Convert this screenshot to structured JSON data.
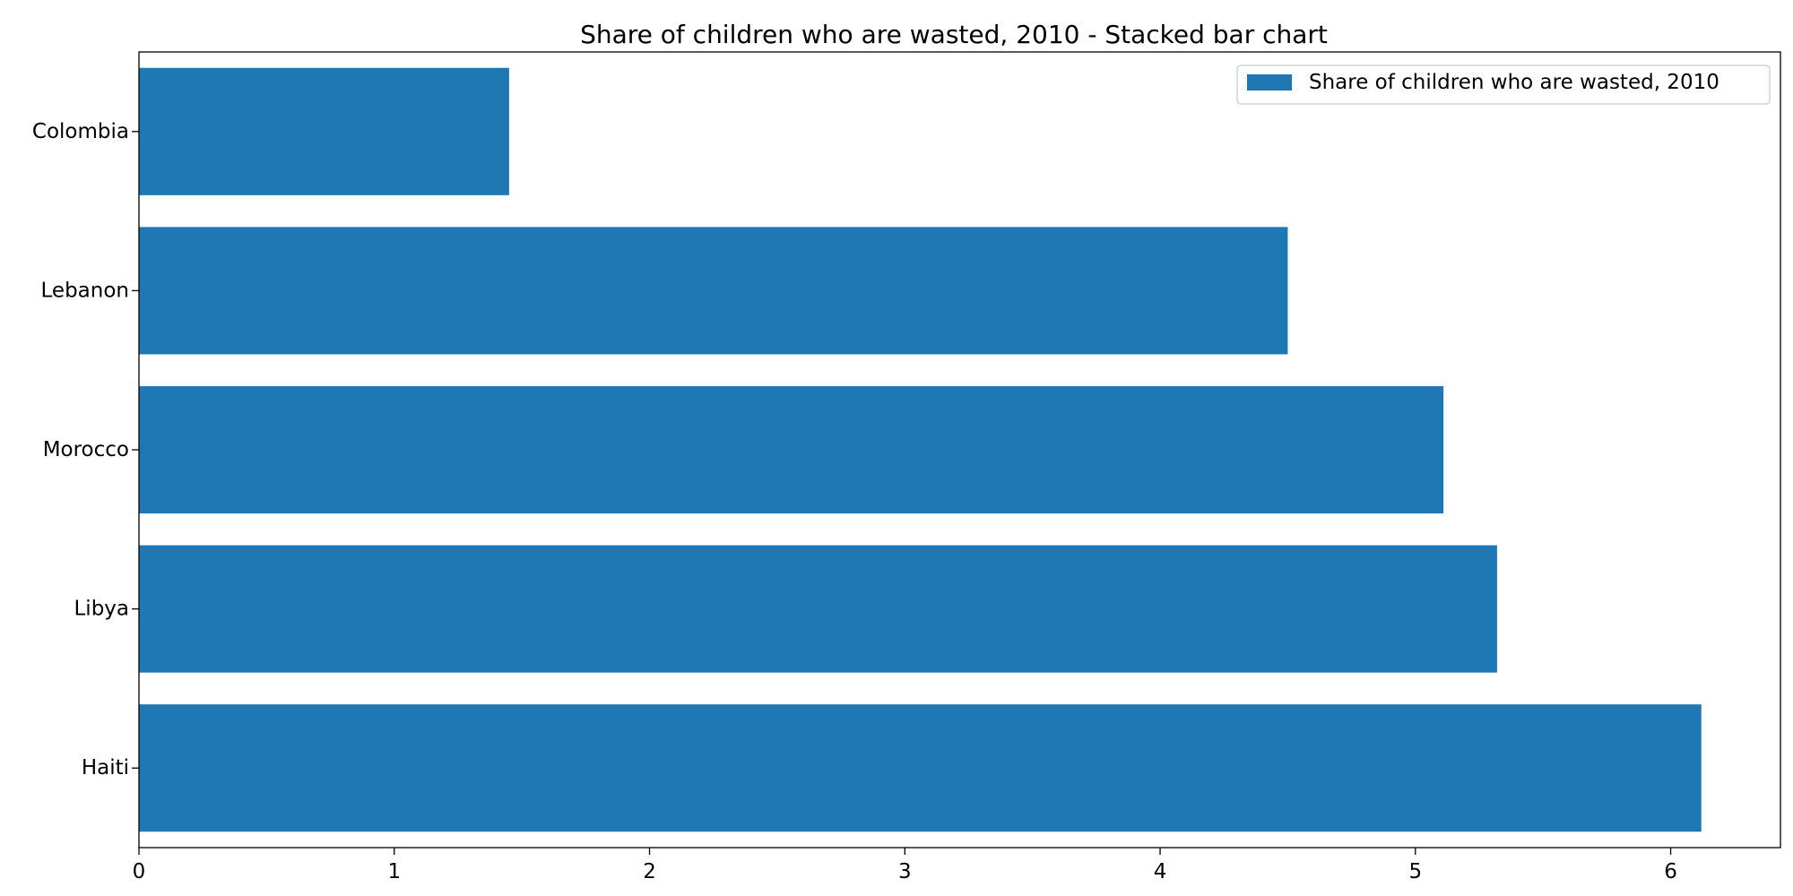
{
  "chart_data": {
    "type": "bar",
    "orientation": "horizontal",
    "title": "Share of children who are wasted, 2010 - Stacked bar chart",
    "xlabel": "",
    "ylabel": "",
    "categories": [
      "Colombia",
      "Lebanon",
      "Morocco",
      "Libya",
      "Haiti"
    ],
    "series": [
      {
        "name": "Share of children who are wasted, 2010",
        "values": [
          1.45,
          4.5,
          5.11,
          5.32,
          6.12
        ],
        "color": "#1f77b4"
      }
    ],
    "xlim": [
      0,
      6.43
    ],
    "xticks": [
      0,
      1,
      2,
      3,
      4,
      5,
      6
    ],
    "grid": false,
    "legend_position": "top-right"
  }
}
